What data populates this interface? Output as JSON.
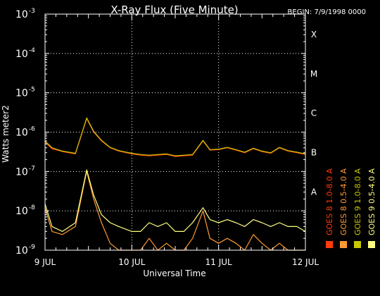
{
  "chart_data": {
    "type": "line",
    "title": "X-Ray Flux (Five Minute)",
    "subtitle": "BEGIN: 7/9/1998 0000",
    "xlabel": "Universal Time",
    "ylabel": "Watts meter2",
    "x_ticks": [
      "9 JUL",
      "10 JUL",
      "11 JUL",
      "12 JUL"
    ],
    "xlim": [
      0,
      3
    ],
    "y_scale": "log",
    "ylim": [
      1e-09,
      0.001
    ],
    "y_ticks": [
      {
        "base": "10",
        "exp": "-9",
        "value": 1e-09
      },
      {
        "base": "10",
        "exp": "-8",
        "value": 1e-08
      },
      {
        "base": "10",
        "exp": "-7",
        "value": 1e-07
      },
      {
        "base": "10",
        "exp": "-6",
        "value": 1e-06
      },
      {
        "base": "10",
        "exp": "-5",
        "value": 1e-05
      },
      {
        "base": "10",
        "exp": "-4",
        "value": 0.0001
      },
      {
        "base": "10",
        "exp": "-3",
        "value": 0.001
      }
    ],
    "flare_classes": [
      {
        "label": "A",
        "value": 1e-08
      },
      {
        "label": "B",
        "value": 1e-07
      },
      {
        "label": "C",
        "value": 1e-06
      },
      {
        "label": "M",
        "value": 1e-05
      },
      {
        "label": "X",
        "value": 0.0001
      }
    ],
    "grid": "dotted",
    "legend_position": "right",
    "series": [
      {
        "name": "GOES 8 1.0-8.0 A",
        "color": "#ff3c0a",
        "x": [
          0,
          0.08,
          0.2,
          0.35,
          0.48,
          0.56,
          0.65,
          0.75,
          0.85,
          1.0,
          1.1,
          1.2,
          1.3,
          1.4,
          1.5,
          1.6,
          1.7,
          1.82,
          1.9,
          2.0,
          2.1,
          2.2,
          2.3,
          2.4,
          2.5,
          2.6,
          2.7,
          2.8,
          2.9,
          3.0
        ],
        "y": [
          5.5e-07,
          3.8e-07,
          3.2e-07,
          2.8e-07,
          2.2e-06,
          1e-06,
          6e-07,
          4e-07,
          3.3e-07,
          2.8e-07,
          2.6e-07,
          2.5e-07,
          2.6e-07,
          2.7e-07,
          2.4e-07,
          2.5e-07,
          2.6e-07,
          6e-07,
          3.5e-07,
          3.6e-07,
          4e-07,
          3.5e-07,
          3e-07,
          3.8e-07,
          3.2e-07,
          2.9e-07,
          4e-07,
          3.3e-07,
          3e-07,
          2.7e-07
        ]
      },
      {
        "name": "GOES 8 0.5-4.0 A",
        "color": "#ff9a32",
        "x": [
          0,
          0.08,
          0.2,
          0.35,
          0.48,
          0.56,
          0.65,
          0.75,
          0.85,
          1.0,
          1.1,
          1.2,
          1.3,
          1.4,
          1.5,
          1.6,
          1.7,
          1.82,
          1.9,
          2.0,
          2.1,
          2.2,
          2.3,
          2.4,
          2.5,
          2.6,
          2.7,
          2.8,
          2.9,
          3.0
        ],
        "y": [
          1.2e-08,
          3e-09,
          2.5e-09,
          4e-09,
          1e-07,
          2e-08,
          5e-09,
          1.5e-09,
          1e-09,
          1e-09,
          1e-09,
          2e-09,
          1e-09,
          1.5e-09,
          1e-09,
          1e-09,
          2e-09,
          1e-08,
          2e-09,
          1.5e-09,
          2e-09,
          1.5e-09,
          1e-09,
          2.5e-09,
          1.5e-09,
          1e-09,
          1.5e-09,
          1e-09,
          1e-09,
          1e-09
        ]
      },
      {
        "name": "GOES 9 1.0-8.0 A",
        "color": "#c8c800",
        "x": [
          0,
          0.08,
          0.2,
          0.35,
          0.48,
          0.56,
          0.65,
          0.75,
          0.85,
          1.0,
          1.1,
          1.2,
          1.3,
          1.4,
          1.5,
          1.6,
          1.7,
          1.82,
          1.9,
          2.0,
          2.1,
          2.2,
          2.3,
          2.4,
          2.5,
          2.6,
          2.7,
          2.8,
          2.9,
          3.0
        ],
        "y": [
          6e-07,
          4e-07,
          3.3e-07,
          2.9e-07,
          2.3e-06,
          1.05e-06,
          6.2e-07,
          4.1e-07,
          3.4e-07,
          2.9e-07,
          2.7e-07,
          2.6e-07,
          2.7e-07,
          2.8e-07,
          2.5e-07,
          2.6e-07,
          2.7e-07,
          6.2e-07,
          3.6e-07,
          3.7e-07,
          4.1e-07,
          3.6e-07,
          3.1e-07,
          3.9e-07,
          3.3e-07,
          3e-07,
          4.1e-07,
          3.4e-07,
          3.1e-07,
          2.8e-07
        ]
      },
      {
        "name": "GOES 9 0.5-4.0 A",
        "color": "#ffff80",
        "x": [
          0,
          0.08,
          0.2,
          0.35,
          0.48,
          0.56,
          0.65,
          0.75,
          0.85,
          1.0,
          1.1,
          1.2,
          1.3,
          1.4,
          1.5,
          1.6,
          1.7,
          1.82,
          1.9,
          2.0,
          2.1,
          2.2,
          2.3,
          2.4,
          2.5,
          2.6,
          2.7,
          2.8,
          2.9,
          3.0
        ],
        "y": [
          1.5e-08,
          4e-09,
          3e-09,
          5e-09,
          1.1e-07,
          2.5e-08,
          8e-09,
          5e-09,
          4e-09,
          3e-09,
          3e-09,
          5e-09,
          4e-09,
          5e-09,
          3e-09,
          3e-09,
          5e-09,
          1.2e-08,
          6e-09,
          5e-09,
          6e-09,
          5e-09,
          4e-09,
          6e-09,
          5e-09,
          4e-09,
          5e-09,
          4e-09,
          4e-09,
          3e-09
        ]
      }
    ]
  }
}
